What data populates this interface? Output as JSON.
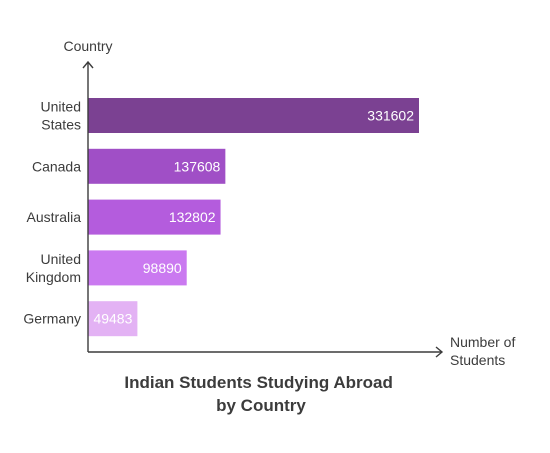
{
  "chart_data": {
    "type": "bar",
    "orientation": "horizontal",
    "title": [
      "Indian Students Studying Abroad",
      "by Country"
    ],
    "ylabel": "Country",
    "xlabel": [
      "Number of",
      "Students"
    ],
    "categories": [
      [
        "United",
        "States"
      ],
      [
        "Canada"
      ],
      [
        "Australia"
      ],
      [
        "United",
        "Kingdom"
      ],
      [
        "Germany"
      ]
    ],
    "values": [
      331602,
      137608,
      132802,
      98890,
      49483
    ],
    "colors": [
      "#7b4192",
      "#a04fc6",
      "#b45cdd",
      "#ca79f0",
      "#e3b2f4"
    ],
    "data_labels": true,
    "grid": false,
    "legend": "none"
  }
}
